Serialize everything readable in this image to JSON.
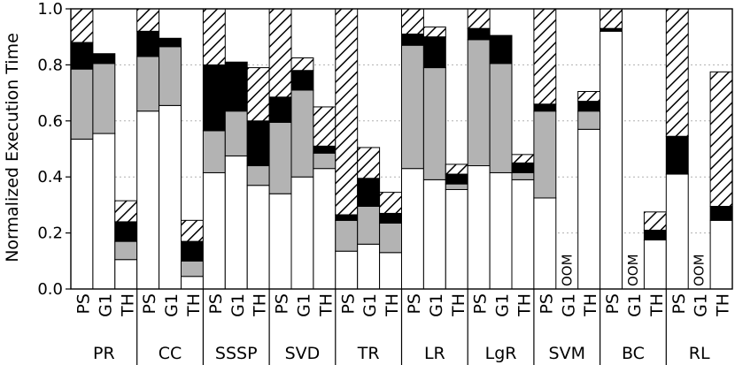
{
  "chart_data": {
    "type": "bar",
    "subtype": "stacked-grouped",
    "title": "",
    "xlabel": "",
    "ylabel": "Normalized Execution Time",
    "ylim": [
      0,
      1.0
    ],
    "yticks": [
      "0.0",
      "0.2",
      "0.4",
      "0.6",
      "0.8",
      "1.0"
    ],
    "grid": "horizontal dotted",
    "legend": "none",
    "segment_fills": [
      "white",
      "gray",
      "black",
      "hatched"
    ],
    "colors": {
      "white": "#ffffff",
      "gray": "#b3b3b3",
      "black": "#000000",
      "hatch": "#000000"
    },
    "bar_names": [
      "PS",
      "G1",
      "TH"
    ],
    "oom_text": "OOM",
    "groups": [
      {
        "name": "PR",
        "bars": [
          {
            "label": "PS",
            "segments": [
              0.535,
              0.25,
              0.095,
              0.12
            ]
          },
          {
            "label": "G1",
            "segments": [
              0.555,
              0.25,
              0.035,
              0.0
            ]
          },
          {
            "label": "TH",
            "segments": [
              0.105,
              0.065,
              0.07,
              0.075
            ]
          }
        ]
      },
      {
        "name": "CC",
        "bars": [
          {
            "label": "PS",
            "segments": [
              0.635,
              0.195,
              0.09,
              0.08
            ]
          },
          {
            "label": "G1",
            "segments": [
              0.655,
              0.21,
              0.03,
              0.0
            ]
          },
          {
            "label": "TH",
            "segments": [
              0.045,
              0.055,
              0.07,
              0.075
            ]
          }
        ]
      },
      {
        "name": "SSSP",
        "bars": [
          {
            "label": "PS",
            "segments": [
              0.415,
              0.15,
              0.235,
              0.2
            ]
          },
          {
            "label": "G1",
            "segments": [
              0.475,
              0.16,
              0.175,
              0.0
            ]
          },
          {
            "label": "TH",
            "segments": [
              0.37,
              0.07,
              0.16,
              0.19
            ]
          }
        ]
      },
      {
        "name": "SVD",
        "bars": [
          {
            "label": "PS",
            "segments": [
              0.34,
              0.255,
              0.09,
              0.315
            ]
          },
          {
            "label": "G1",
            "segments": [
              0.4,
              0.31,
              0.07,
              0.045
            ]
          },
          {
            "label": "TH",
            "segments": [
              0.43,
              0.055,
              0.025,
              0.14
            ]
          }
        ]
      },
      {
        "name": "TR",
        "bars": [
          {
            "label": "PS",
            "segments": [
              0.135,
              0.11,
              0.02,
              0.735
            ]
          },
          {
            "label": "G1",
            "segments": [
              0.16,
              0.135,
              0.1,
              0.11
            ]
          },
          {
            "label": "TH",
            "segments": [
              0.13,
              0.105,
              0.035,
              0.075
            ]
          }
        ]
      },
      {
        "name": "LR",
        "bars": [
          {
            "label": "PS",
            "segments": [
              0.43,
              0.44,
              0.04,
              0.09
            ]
          },
          {
            "label": "G1",
            "segments": [
              0.39,
              0.4,
              0.11,
              0.035
            ]
          },
          {
            "label": "TH",
            "segments": [
              0.355,
              0.02,
              0.035,
              0.035
            ]
          }
        ]
      },
      {
        "name": "LgR",
        "bars": [
          {
            "label": "PS",
            "segments": [
              0.44,
              0.45,
              0.04,
              0.07
            ]
          },
          {
            "label": "G1",
            "segments": [
              0.415,
              0.39,
              0.1,
              0.0
            ]
          },
          {
            "label": "TH",
            "segments": [
              0.39,
              0.025,
              0.035,
              0.03
            ]
          }
        ]
      },
      {
        "name": "SVM",
        "bars": [
          {
            "label": "PS",
            "segments": [
              0.325,
              0.31,
              0.025,
              0.34
            ]
          },
          {
            "label": "G1",
            "oom": true,
            "segments": [
              0,
              0,
              0,
              0
            ]
          },
          {
            "label": "TH",
            "segments": [
              0.57,
              0.065,
              0.035,
              0.035
            ]
          }
        ]
      },
      {
        "name": "BC",
        "bars": [
          {
            "label": "PS",
            "segments": [
              0.92,
              0.0,
              0.01,
              0.07
            ]
          },
          {
            "label": "G1",
            "oom": true,
            "segments": [
              0,
              0,
              0,
              0
            ]
          },
          {
            "label": "TH",
            "segments": [
              0.175,
              0.0,
              0.035,
              0.065
            ]
          }
        ]
      },
      {
        "name": "RL",
        "bars": [
          {
            "label": "PS",
            "segments": [
              0.41,
              0.0,
              0.135,
              0.455
            ]
          },
          {
            "label": "G1",
            "oom": true,
            "segments": [
              0,
              0,
              0,
              0
            ]
          },
          {
            "label": "TH",
            "segments": [
              0.245,
              0.0,
              0.05,
              0.48
            ]
          }
        ]
      }
    ]
  }
}
